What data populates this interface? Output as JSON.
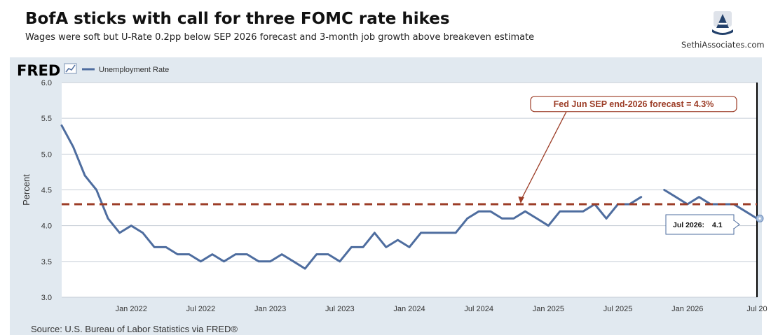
{
  "header": {
    "title": "BofA sticks with call for three FOMC rate hikes",
    "subtitle": "Wages were soft but U-Rate 0.2pp below SEP 2026 forecast and 3-month job growth above breakeven estimate",
    "brand": "SethiAssociates.com"
  },
  "fred": {
    "logo_text": "FRED",
    "source": "Source: U.S. Bureau of Labor Statistics via FRED®"
  },
  "colors": {
    "series": "#4e6d9f",
    "forecast": "#9c3d27",
    "panel": "#e1e9f0",
    "grid": "#c5cdd6"
  },
  "chart_data": {
    "type": "line",
    "series": [
      {
        "name": "Unemployment Rate",
        "points": [
          [
            "2021-07",
            5.4
          ],
          [
            "2021-08",
            5.1
          ],
          [
            "2021-09",
            4.7
          ],
          [
            "2021-10",
            4.5
          ],
          [
            "2021-11",
            4.1
          ],
          [
            "2021-12",
            3.9
          ],
          [
            "2022-01",
            4.0
          ],
          [
            "2022-02",
            3.9
          ],
          [
            "2022-03",
            3.7
          ],
          [
            "2022-04",
            3.7
          ],
          [
            "2022-05",
            3.6
          ],
          [
            "2022-06",
            3.6
          ],
          [
            "2022-07",
            3.5
          ],
          [
            "2022-08",
            3.6
          ],
          [
            "2022-09",
            3.5
          ],
          [
            "2022-10",
            3.6
          ],
          [
            "2022-11",
            3.6
          ],
          [
            "2022-12",
            3.5
          ],
          [
            "2023-01",
            3.5
          ],
          [
            "2023-02",
            3.6
          ],
          [
            "2023-03",
            3.5
          ],
          [
            "2023-04",
            3.4
          ],
          [
            "2023-05",
            3.6
          ],
          [
            "2023-06",
            3.6
          ],
          [
            "2023-07",
            3.5
          ],
          [
            "2023-08",
            3.7
          ],
          [
            "2023-09",
            3.7
          ],
          [
            "2023-10",
            3.9
          ],
          [
            "2023-11",
            3.7
          ],
          [
            "2023-12",
            3.8
          ],
          [
            "2024-01",
            3.7
          ],
          [
            "2024-02",
            3.9
          ],
          [
            "2024-03",
            3.9
          ],
          [
            "2024-04",
            3.9
          ],
          [
            "2024-05",
            3.9
          ],
          [
            "2024-06",
            4.1
          ],
          [
            "2024-07",
            4.2
          ],
          [
            "2024-08",
            4.2
          ],
          [
            "2024-09",
            4.1
          ],
          [
            "2024-10",
            4.1
          ],
          [
            "2024-11",
            4.2
          ],
          [
            "2024-12",
            4.1
          ],
          [
            "2025-01",
            4.0
          ],
          [
            "2025-02",
            4.2
          ],
          [
            "2025-03",
            4.2
          ],
          [
            "2025-04",
            4.2
          ],
          [
            "2025-05",
            4.3
          ],
          [
            "2025-06",
            4.1
          ],
          [
            "2025-07",
            4.3
          ],
          [
            "2025-08",
            4.3
          ],
          [
            "2025-09",
            4.4
          ],
          [
            "2025-10",
            null
          ],
          [
            "2025-11",
            4.5
          ],
          [
            "2025-12",
            4.4
          ],
          [
            "2026-01",
            4.3
          ],
          [
            "2026-02",
            4.4
          ],
          [
            "2026-03",
            4.3
          ],
          [
            "2026-04",
            4.3
          ],
          [
            "2026-05",
            4.3
          ],
          [
            "2026-06",
            4.2
          ],
          [
            "2026-07",
            4.1
          ]
        ]
      }
    ],
    "ylabel": "Percent",
    "ylim": [
      3.0,
      6.0
    ],
    "yticks": [
      "3.0",
      "3.5",
      "4.0",
      "4.5",
      "5.0",
      "5.5",
      "6.0"
    ],
    "xlim": [
      "2021-07",
      "2026-07"
    ],
    "xticks": [
      {
        "date": "2022-01",
        "label": "Jan 2022"
      },
      {
        "date": "2022-07",
        "label": "Jul 2022"
      },
      {
        "date": "2023-01",
        "label": "Jan 2023"
      },
      {
        "date": "2023-07",
        "label": "Jul 2023"
      },
      {
        "date": "2024-01",
        "label": "Jan 2024"
      },
      {
        "date": "2024-07",
        "label": "Jul 2024"
      },
      {
        "date": "2025-01",
        "label": "Jan 2025"
      },
      {
        "date": "2025-07",
        "label": "Jul 2025"
      },
      {
        "date": "2026-01",
        "label": "Jan 2026"
      },
      {
        "date": "2026-07",
        "label": "Jul 20"
      }
    ],
    "reference_line": {
      "value": 4.3,
      "label": "Fed Jun SEP end-2026 forecast = 4.3%",
      "arrow_target_date": "2024-12"
    },
    "tooltip": {
      "date_label": "Jul 2026:",
      "value_label": "4.1",
      "date": "2026-07",
      "value": 4.1
    },
    "grid": true,
    "legend_placement": "top-left"
  }
}
